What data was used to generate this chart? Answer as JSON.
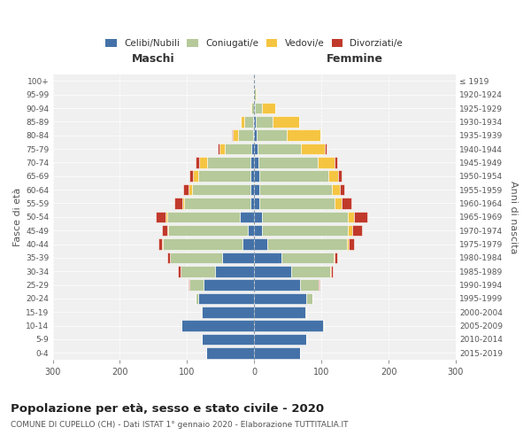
{
  "age_groups": [
    "0-4",
    "5-9",
    "10-14",
    "15-19",
    "20-24",
    "25-29",
    "30-34",
    "35-39",
    "40-44",
    "45-49",
    "50-54",
    "55-59",
    "60-64",
    "65-69",
    "70-74",
    "75-79",
    "80-84",
    "85-89",
    "90-94",
    "95-99",
    "100+"
  ],
  "birth_years": [
    "2015-2019",
    "2010-2014",
    "2005-2009",
    "2000-2004",
    "1995-1999",
    "1990-1994",
    "1985-1989",
    "1980-1984",
    "1975-1979",
    "1970-1974",
    "1965-1969",
    "1960-1964",
    "1955-1959",
    "1950-1954",
    "1945-1949",
    "1940-1944",
    "1935-1939",
    "1930-1934",
    "1925-1929",
    "1920-1924",
    "≤ 1919"
  ],
  "males_celibe": [
    72,
    78,
    108,
    78,
    83,
    75,
    58,
    48,
    18,
    10,
    22,
    6,
    5,
    5,
    5,
    4,
    2,
    1,
    0,
    0,
    0
  ],
  "males_coniugato": [
    0,
    0,
    1,
    2,
    4,
    22,
    52,
    78,
    118,
    118,
    108,
    98,
    88,
    78,
    65,
    40,
    22,
    14,
    4,
    1,
    0
  ],
  "males_vedovo": [
    0,
    0,
    0,
    0,
    0,
    0,
    0,
    0,
    1,
    1,
    2,
    3,
    5,
    8,
    12,
    8,
    8,
    5,
    1,
    0,
    0
  ],
  "males_divorziato": [
    0,
    0,
    0,
    0,
    0,
    1,
    3,
    4,
    5,
    8,
    15,
    12,
    8,
    5,
    5,
    3,
    1,
    0,
    0,
    0,
    0
  ],
  "females_nubile": [
    68,
    78,
    103,
    76,
    78,
    68,
    55,
    40,
    20,
    12,
    12,
    8,
    8,
    7,
    6,
    5,
    3,
    2,
    1,
    0,
    0
  ],
  "females_coniugata": [
    0,
    0,
    1,
    2,
    8,
    28,
    58,
    78,
    118,
    128,
    128,
    112,
    108,
    103,
    88,
    65,
    45,
    25,
    10,
    2,
    0
  ],
  "females_vedova": [
    0,
    0,
    0,
    0,
    0,
    0,
    1,
    2,
    3,
    6,
    8,
    10,
    12,
    15,
    25,
    35,
    50,
    40,
    20,
    2,
    0
  ],
  "females_divorziata": [
    0,
    0,
    0,
    0,
    0,
    1,
    3,
    4,
    8,
    15,
    20,
    15,
    6,
    5,
    4,
    3,
    1,
    0,
    0,
    0,
    0
  ],
  "colors": {
    "celibe_nubile": "#4472a8",
    "coniugato_a": "#b5c99a",
    "vedovo_a": "#f5c542",
    "divorziato_a": "#c0392b"
  },
  "xlim": 300,
  "title": "Popolazione per età, sesso e stato civile - 2020",
  "subtitle": "COMUNE DI CUPELLO (CH) - Dati ISTAT 1° gennaio 2020 - Elaborazione TUTTITALIA.IT",
  "ylabel_left": "Fasce di età",
  "ylabel_right": "Anni di nascita",
  "xlabel_left": "Maschi",
  "xlabel_right": "Femmine",
  "background_color": "#ffffff",
  "grid_color": "#cccccc"
}
